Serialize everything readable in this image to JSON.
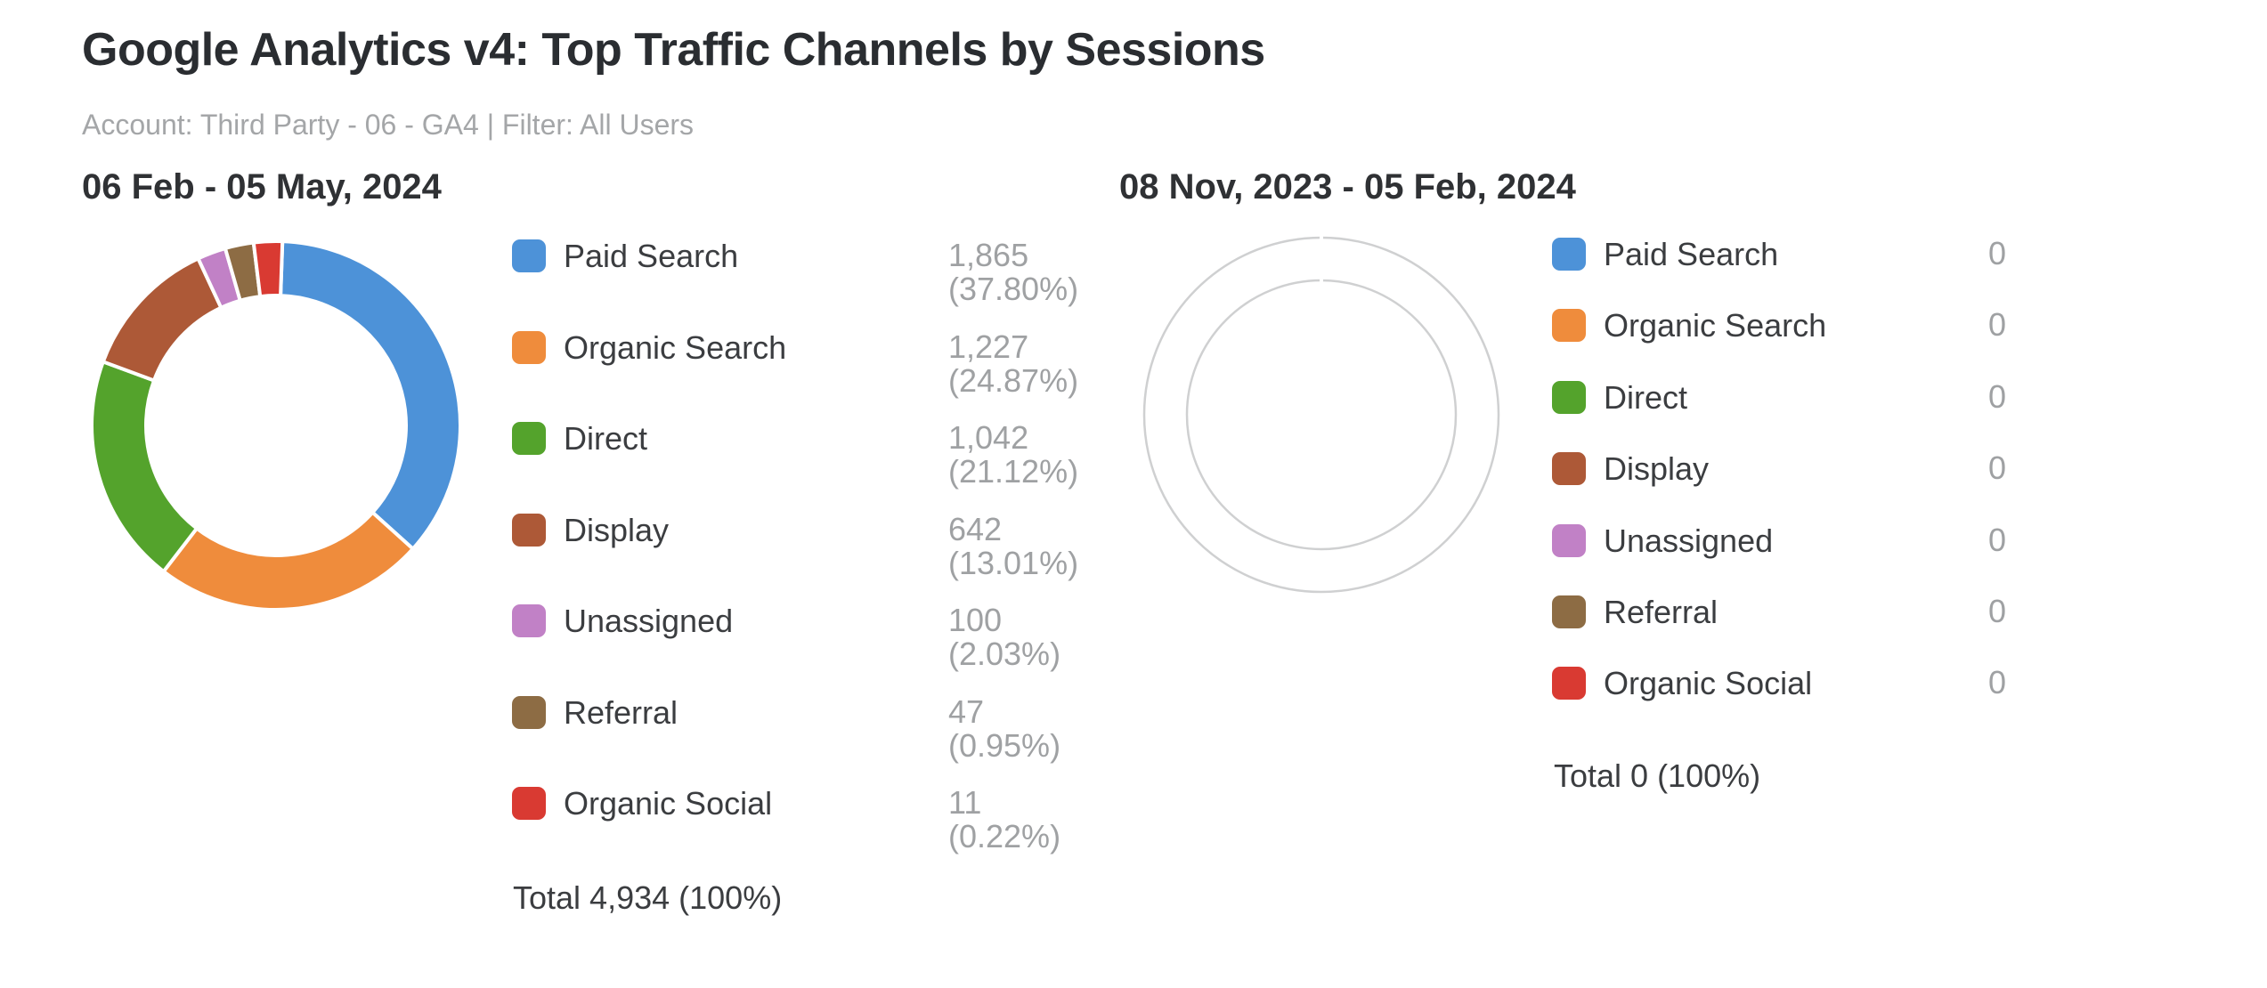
{
  "header": {
    "title": "Google Analytics v4: Top Traffic Channels by Sessions",
    "subtitle": "Account: Third Party - 06 - GA4 | Filter: All Users"
  },
  "colors": {
    "paid_search": "#4d92d8",
    "organic_search": "#ef8c3c",
    "direct": "#54a32c",
    "display": "#ad5937",
    "unassigned": "#c181c6",
    "referral": "#8d6c44",
    "organic_social": "#d93a32",
    "empty_ring": "#cfd0d1",
    "value_text": "#9fa1a3",
    "label_text": "#3b3d40"
  },
  "panels": [
    {
      "date_range": "06 Feb - 05 May, 2024",
      "total_label": "Total 4,934 (100%)",
      "rows": [
        {
          "label": "Paid Search",
          "color": "#4d92d8",
          "value": 1865,
          "value_display": "1,865",
          "pct_display": "(37.80%)"
        },
        {
          "label": "Organic Search",
          "color": "#ef8c3c",
          "value": 1227,
          "value_display": "1,227",
          "pct_display": "(24.87%)"
        },
        {
          "label": "Direct",
          "color": "#54a32c",
          "value": 1042,
          "value_display": "1,042",
          "pct_display": "(21.12%)"
        },
        {
          "label": "Display",
          "color": "#ad5937",
          "value": 642,
          "value_display": "642",
          "pct_display": "(13.01%)"
        },
        {
          "label": "Unassigned",
          "color": "#c181c6",
          "value": 100,
          "value_display": "100",
          "pct_display": "(2.03%)"
        },
        {
          "label": "Referral",
          "color": "#8d6c44",
          "value": 47,
          "value_display": "47",
          "pct_display": "(0.95%)"
        },
        {
          "label": "Organic Social",
          "color": "#d93a32",
          "value": 11,
          "value_display": "11",
          "pct_display": "(0.22%)"
        }
      ]
    },
    {
      "date_range": "08 Nov, 2023 - 05 Feb, 2024",
      "total_label": "Total 0 (100%)",
      "rows": [
        {
          "label": "Paid Search",
          "color": "#4d92d8",
          "value": 0,
          "value_display": "0",
          "pct_display": ""
        },
        {
          "label": "Organic Search",
          "color": "#ef8c3c",
          "value": 0,
          "value_display": "0",
          "pct_display": ""
        },
        {
          "label": "Direct",
          "color": "#54a32c",
          "value": 0,
          "value_display": "0",
          "pct_display": ""
        },
        {
          "label": "Display",
          "color": "#ad5937",
          "value": 0,
          "value_display": "0",
          "pct_display": ""
        },
        {
          "label": "Unassigned",
          "color": "#c181c6",
          "value": 0,
          "value_display": "0",
          "pct_display": ""
        },
        {
          "label": "Referral",
          "color": "#8d6c44",
          "value": 0,
          "value_display": "0",
          "pct_display": ""
        },
        {
          "label": "Organic Social",
          "color": "#d93a32",
          "value": 0,
          "value_display": "0",
          "pct_display": ""
        }
      ]
    }
  ],
  "chart_data": [
    {
      "type": "pie",
      "subtype": "donut",
      "title": "06 Feb - 05 May, 2024",
      "labels": [
        "Paid Search",
        "Organic Search",
        "Direct",
        "Display",
        "Unassigned",
        "Referral",
        "Organic Social"
      ],
      "values": [
        1865,
        1227,
        1042,
        642,
        100,
        47,
        11
      ],
      "percentages": [
        37.8,
        24.87,
        21.12,
        13.01,
        2.03,
        0.95,
        0.22
      ],
      "total": 4934,
      "colors": [
        "#4d92d8",
        "#ef8c3c",
        "#54a32c",
        "#ad5937",
        "#c181c6",
        "#8d6c44",
        "#d93a32"
      ],
      "legend_position": "right",
      "start_at_top": true,
      "clockwise": true
    },
    {
      "type": "pie",
      "subtype": "donut",
      "title": "08 Nov, 2023 - 05 Feb, 2024",
      "labels": [
        "Paid Search",
        "Organic Search",
        "Direct",
        "Display",
        "Unassigned",
        "Referral",
        "Organic Social"
      ],
      "values": [
        0,
        0,
        0,
        0,
        0,
        0,
        0
      ],
      "total": 0,
      "colors": [
        "#4d92d8",
        "#ef8c3c",
        "#54a32c",
        "#ad5937",
        "#c181c6",
        "#8d6c44",
        "#d93a32"
      ],
      "legend_position": "right",
      "empty": true
    }
  ]
}
